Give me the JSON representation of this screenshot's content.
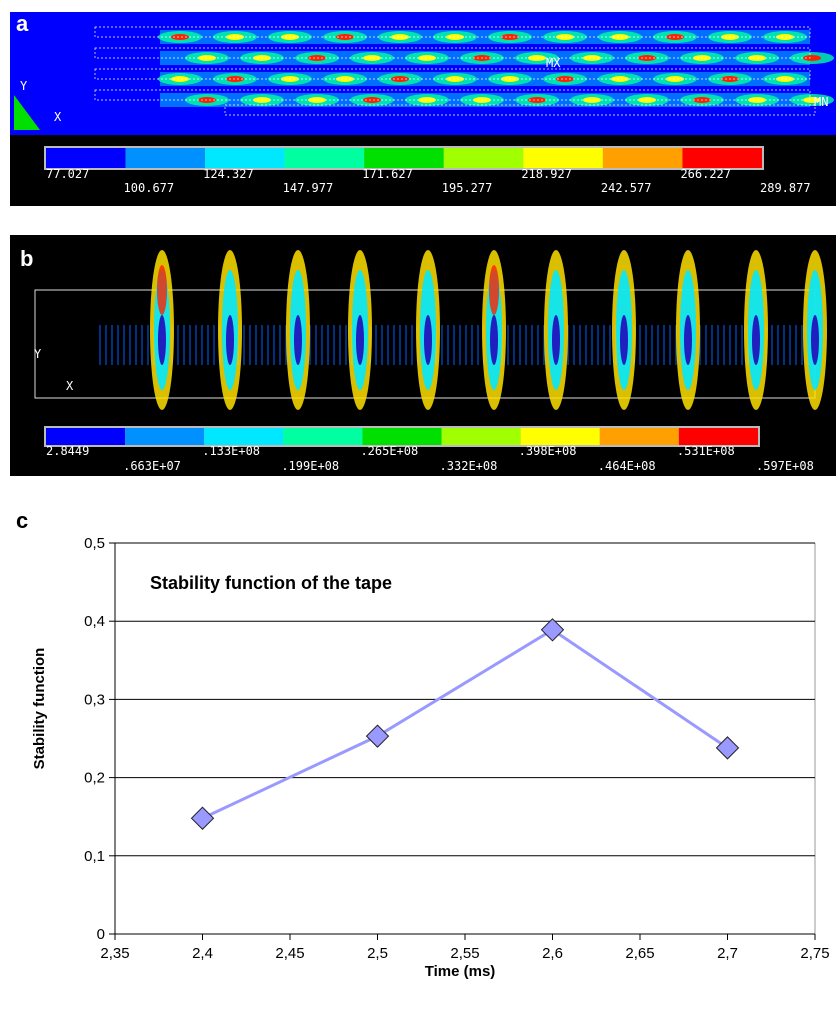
{
  "panels": [
    {
      "label": "a",
      "colors": [
        "#0000ff",
        "#0090ff",
        "#00e8ff",
        "#00ffa0",
        "#00e000",
        "#a0ff00",
        "#ffff00",
        "#ffa000",
        "#ff0000"
      ],
      "colorbar_labels": [
        "77.027",
        "100.677",
        "124.327",
        "147.977",
        "171.627",
        "195.277",
        "218.927",
        "242.577",
        "266.227",
        "289.877"
      ],
      "markers": [
        "Y",
        "X",
        "MX",
        "MN"
      ]
    },
    {
      "label": "b",
      "colors": [
        "#0000ff",
        "#0090ff",
        "#00e8ff",
        "#00ffa0",
        "#00e000",
        "#a0ff00",
        "#ffff00",
        "#ffa000",
        "#ff0000"
      ],
      "colorbar_labels": [
        "2.8449",
        ".663E+07",
        ".133E+08",
        ".199E+08",
        ".265E+08",
        ".332E+08",
        ".398E+08",
        ".464E+08",
        ".531E+08",
        ".597E+08"
      ],
      "markers": [
        "Y",
        "X"
      ]
    }
  ],
  "panel_c": {
    "label": "c"
  },
  "chart_data": {
    "type": "line",
    "title": "Stability function of the tape",
    "x_label": "Time (ms)",
    "y_label": "Stability function",
    "x": [
      2.4,
      2.5,
      2.6,
      2.7
    ],
    "values": [
      0.148,
      0.253,
      0.389,
      0.238
    ],
    "color": "#9999ff",
    "marker": "diamond",
    "xlim": [
      2.35,
      2.75
    ],
    "xticks": [
      {
        "value": 2.35,
        "label": "2,35"
      },
      {
        "value": 2.4,
        "label": "2,4"
      },
      {
        "value": 2.45,
        "label": "2,45"
      },
      {
        "value": 2.5,
        "label": "2,5"
      },
      {
        "value": 2.55,
        "label": "2,55"
      },
      {
        "value": 2.6,
        "label": "2,6"
      },
      {
        "value": 2.65,
        "label": "2,65"
      },
      {
        "value": 2.7,
        "label": "2,7"
      },
      {
        "value": 2.75,
        "label": "2,75"
      }
    ],
    "ylim": [
      0,
      0.5
    ],
    "yticks": [
      0,
      {
        "value": 0.1,
        "label": "0,1"
      },
      {
        "value": 0.2,
        "label": "0,2"
      },
      {
        "value": 0.3,
        "label": "0,3"
      },
      {
        "value": 0.4,
        "label": "0,4"
      },
      {
        "value": 0.5,
        "label": "0,5"
      }
    ],
    "grid": true
  }
}
